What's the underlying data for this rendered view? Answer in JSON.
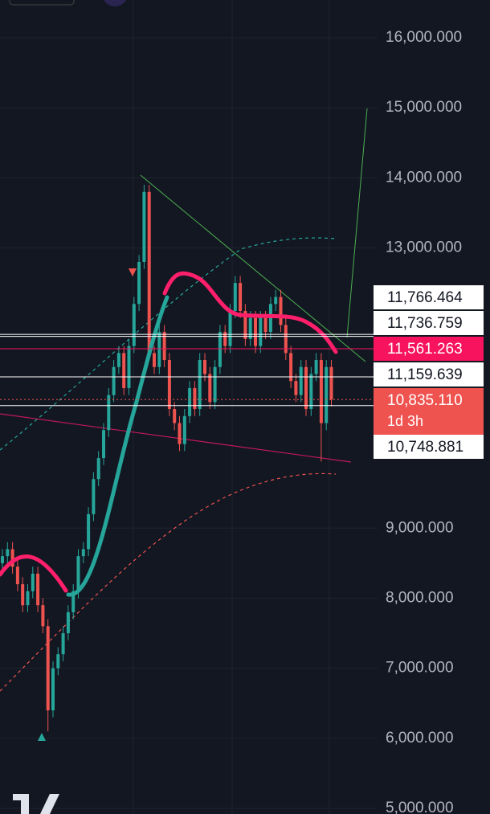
{
  "chart_data": {
    "type": "candlestick",
    "open": [
      8500,
      8600,
      8700,
      8450,
      8200,
      7900,
      8100,
      8350,
      7900,
      7600,
      6400,
      7000,
      7200,
      7500,
      7800,
      8100,
      8600,
      8700,
      9200,
      9700,
      10000,
      10400,
      10900,
      11300,
      11500,
      11000,
      11600,
      12200,
      12800,
      13800,
      11500,
      11300,
      11800,
      11400,
      10700,
      10500,
      10200,
      10600,
      11000,
      10700,
      11400,
      11200,
      10800,
      11300,
      11800,
      11600,
      12100,
      12500,
      12100,
      11700,
      12000,
      11600,
      12000,
      11800,
      12200,
      12300,
      11900,
      11500,
      11100,
      10900,
      11300,
      10700,
      11200,
      11400,
      10500,
      11300
    ],
    "high": [
      8700,
      8800,
      8800,
      8550,
      8300,
      8200,
      8450,
      8450,
      8000,
      7700,
      7100,
      7300,
      7600,
      7900,
      8200,
      8700,
      8800,
      9300,
      9800,
      10100,
      10500,
      11000,
      11400,
      11600,
      11600,
      11700,
      12300,
      12900,
      13900,
      13900,
      11600,
      11900,
      11900,
      11500,
      10800,
      10600,
      10700,
      11100,
      11100,
      11500,
      11500,
      11300,
      11400,
      11900,
      11900,
      12200,
      12600,
      12600,
      12200,
      12100,
      12100,
      12100,
      12100,
      12300,
      12400,
      12400,
      12000,
      11600,
      11200,
      11400,
      11400,
      11300,
      11500,
      11500,
      11400,
      11400
    ],
    "low": [
      8400,
      8500,
      8350,
      8100,
      7800,
      7800,
      8000,
      7800,
      7500,
      6100,
      6300,
      6900,
      7100,
      7400,
      7700,
      8000,
      8500,
      8600,
      9100,
      9600,
      9900,
      10300,
      10800,
      11200,
      10900,
      10900,
      11500,
      12100,
      12700,
      11400,
      11200,
      11200,
      11300,
      10600,
      10400,
      10100,
      10100,
      10500,
      10600,
      10600,
      11100,
      10700,
      10700,
      11200,
      11500,
      11500,
      12000,
      12000,
      11600,
      11600,
      11500,
      11500,
      11700,
      11700,
      12100,
      11800,
      11400,
      11000,
      10800,
      10800,
      10600,
      10600,
      11100,
      9950,
      10400,
      10735
    ],
    "close": [
      8600,
      8700,
      8450,
      8200,
      7900,
      8100,
      8350,
      7900,
      7600,
      6400,
      7000,
      7200,
      7500,
      7800,
      8100,
      8600,
      8700,
      9200,
      9700,
      10000,
      10400,
      10900,
      11300,
      11500,
      11000,
      11600,
      12200,
      12800,
      13800,
      11500,
      11300,
      11800,
      11400,
      10700,
      10500,
      10200,
      10600,
      11000,
      10700,
      11400,
      11200,
      10800,
      11300,
      11800,
      11600,
      12100,
      12500,
      12100,
      11700,
      12000,
      11600,
      12000,
      11800,
      12200,
      12300,
      11900,
      11500,
      11100,
      10900,
      11300,
      10700,
      11200,
      11400,
      10500,
      11300,
      10835
    ],
    "up_color": "#26a69a",
    "down_color": "#ef5350",
    "ylim": [
      5000,
      16000
    ],
    "yticks": [
      {
        "value": 5000,
        "label": "5,000.000"
      },
      {
        "value": 6000,
        "label": "6,000.000"
      },
      {
        "value": 7000,
        "label": "7,000.000"
      },
      {
        "value": 8000,
        "label": "8,000.000"
      },
      {
        "value": 9000,
        "label": "9,000.000"
      },
      {
        "value": 13000,
        "label": "13,000.000"
      },
      {
        "value": 14000,
        "label": "14,000.000"
      },
      {
        "value": 15000,
        "label": "15,000.000"
      },
      {
        "value": 16000,
        "label": "16,000.000"
      }
    ],
    "price_labels": [
      {
        "value": 11766.464,
        "label": "11,766.464",
        "style": "white"
      },
      {
        "value": 11736.759,
        "label": "11,736.759",
        "style": "white"
      },
      {
        "value": 11561.263,
        "label": "11,561.263",
        "style": "pink"
      },
      {
        "value": 11159.639,
        "label": "11,159.639",
        "style": "white"
      },
      {
        "value": 10835.11,
        "label": "10,835.110",
        "style": "red",
        "countdown": "1d 3h"
      },
      {
        "value": 10748.881,
        "label": "10,748.881",
        "style": "white"
      }
    ]
  }
}
